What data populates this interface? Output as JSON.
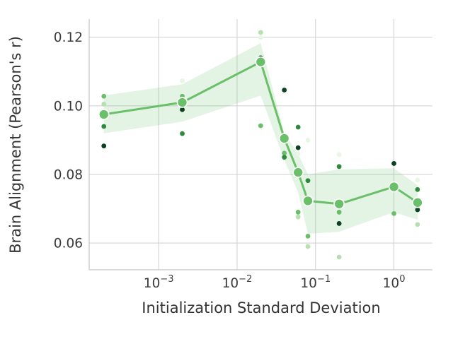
{
  "chart_data": {
    "type": "line",
    "title": "",
    "xlabel": "Initialization Standard Deviation",
    "ylabel": "Brain Alignment (Pearson's r)",
    "x_scale": "log",
    "grid": true,
    "legend": "none",
    "xlim": [
      0.00013,
      3.1
    ],
    "ylim": [
      0.0522,
      0.1253
    ],
    "x": [
      0.0002,
      0.002,
      0.02,
      0.04,
      0.06,
      0.08,
      0.2,
      1.0,
      2.0
    ],
    "series": [
      {
        "name": "mean brain alignment",
        "values": [
          0.0975,
          0.101,
          0.1128,
          0.0905,
          0.0806,
          0.0723,
          0.0714,
          0.0764,
          0.0718
        ]
      }
    ],
    "band": {
      "name": "confidence interval",
      "upper": [
        0.103,
        0.1063,
        0.1183,
        0.0921,
        0.086,
        0.08,
        0.0815,
        0.0818,
        0.0768
      ],
      "lower": [
        0.092,
        0.0954,
        0.103,
        0.0842,
        0.0748,
        0.0627,
        0.0633,
        0.069,
        0.0668
      ]
    },
    "scatter": [
      {
        "x": 0.0002,
        "y": 0.1028,
        "shade": 2
      },
      {
        "x": 0.0002,
        "y": 0.1005,
        "shade": 1
      },
      {
        "x": 0.0002,
        "y": 0.094,
        "shade": 3
      },
      {
        "x": 0.0002,
        "y": 0.0883,
        "shade": 4
      },
      {
        "x": 0.002,
        "y": 0.1073,
        "shade": 0
      },
      {
        "x": 0.002,
        "y": 0.1028,
        "shade": 2
      },
      {
        "x": 0.002,
        "y": 0.0989,
        "shade": 4
      },
      {
        "x": 0.002,
        "y": 0.0919,
        "shade": 3
      },
      {
        "x": 0.02,
        "y": 0.1214,
        "shade": 1
      },
      {
        "x": 0.02,
        "y": 0.1199,
        "shade": 0
      },
      {
        "x": 0.02,
        "y": 0.114,
        "shade": 4
      },
      {
        "x": 0.02,
        "y": 0.0942,
        "shade": 2
      },
      {
        "x": 0.04,
        "y": 0.1046,
        "shade": 4
      },
      {
        "x": 0.04,
        "y": 0.0862,
        "shade": 2
      },
      {
        "x": 0.04,
        "y": 0.085,
        "shade": 3
      },
      {
        "x": 0.06,
        "y": 0.0938,
        "shade": 3
      },
      {
        "x": 0.06,
        "y": 0.0878,
        "shade": 4
      },
      {
        "x": 0.06,
        "y": 0.086,
        "shade": 0
      },
      {
        "x": 0.06,
        "y": 0.069,
        "shade": 2
      },
      {
        "x": 0.06,
        "y": 0.0676,
        "shade": 1
      },
      {
        "x": 0.08,
        "y": 0.09,
        "shade": 0
      },
      {
        "x": 0.08,
        "y": 0.0782,
        "shade": 3
      },
      {
        "x": 0.08,
        "y": 0.062,
        "shade": 2
      },
      {
        "x": 0.08,
        "y": 0.059,
        "shade": 1
      },
      {
        "x": 0.2,
        "y": 0.0858,
        "shade": 0
      },
      {
        "x": 0.2,
        "y": 0.0823,
        "shade": 3
      },
      {
        "x": 0.2,
        "y": 0.069,
        "shade": 2
      },
      {
        "x": 0.2,
        "y": 0.0657,
        "shade": 4
      },
      {
        "x": 0.2,
        "y": 0.0559,
        "shade": 1
      },
      {
        "x": 1.0,
        "y": 0.0832,
        "shade": 4
      },
      {
        "x": 1.0,
        "y": 0.0686,
        "shade": 2
      },
      {
        "x": 2.0,
        "y": 0.0784,
        "shade": 0
      },
      {
        "x": 2.0,
        "y": 0.0756,
        "shade": 3
      },
      {
        "x": 2.0,
        "y": 0.0697,
        "shade": 4
      },
      {
        "x": 2.0,
        "y": 0.0654,
        "shade": 1
      }
    ],
    "x_ticks": [
      {
        "base": "10",
        "exponent": "−3",
        "value": 0.001
      },
      {
        "base": "10",
        "exponent": "−2",
        "value": 0.01
      },
      {
        "base": "10",
        "exponent": "−1",
        "value": 0.1
      },
      {
        "base": "10",
        "exponent": "0",
        "value": 1.0
      }
    ],
    "y_ticks": [
      {
        "label": "0.06",
        "value": 0.06
      },
      {
        "label": "0.08",
        "value": 0.08
      },
      {
        "label": "0.10",
        "value": 0.1
      },
      {
        "label": "0.12",
        "value": 0.12
      }
    ],
    "colors": {
      "line": "#6abf69",
      "marker_fill": "#6abf69",
      "marker_edge": "#ffffff",
      "band_fill": "rgba(116,196,118,0.20)",
      "grid": "#cfcfcf",
      "spine": "#c8c8c8",
      "tick_text": "#3a3a3a",
      "scatter_shades": [
        "#e9f6e4",
        "#b6e0af",
        "#69bf67",
        "#2e8b3e",
        "#0b4220"
      ]
    }
  }
}
